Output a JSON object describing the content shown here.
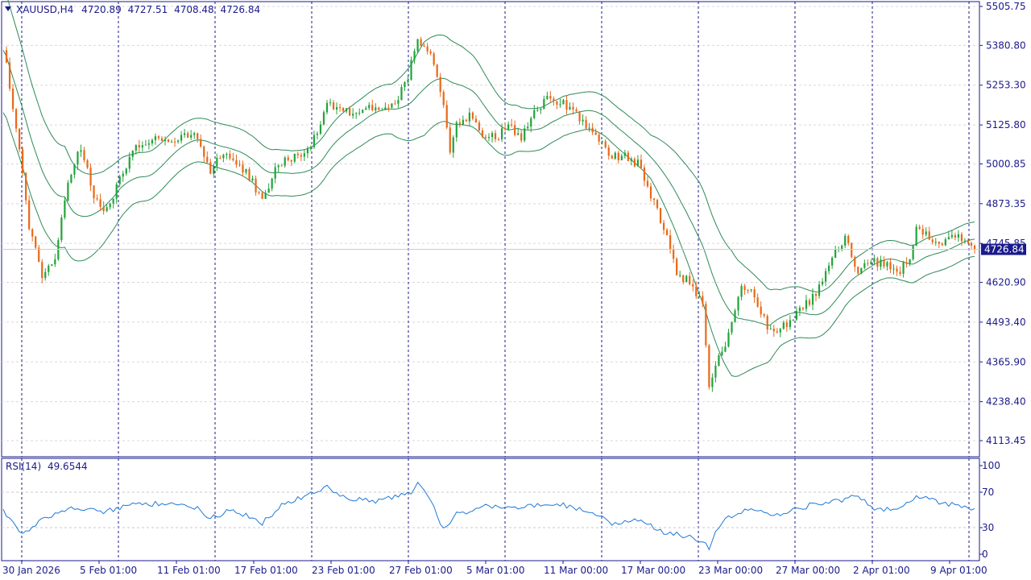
{
  "header": {
    "symbol": "XAUUSD,H4",
    "open": "4720.89",
    "high": "4727.51",
    "low": "4708.48",
    "close": "4726.84"
  },
  "current_price_label": "4726.84",
  "rsi_panel": {
    "label": "RSI(14)",
    "value": "49.6544",
    "levels": [
      "100",
      "70",
      "30",
      "0"
    ]
  },
  "colors": {
    "frame": "#1a1a8c",
    "bull": "#22a33a",
    "bear": "#e8691a",
    "bands": "#2e8b57",
    "rsi": "#1e78d6",
    "grid": "#d8d8d8",
    "price_tag_bg": "#1a1a8c",
    "price_tag_text": "#ffffff"
  },
  "chart_data": {
    "type": "candlestick",
    "symbol": "XAUUSD",
    "timeframe": "H4",
    "price_ticks": [
      "5505.75",
      "5380.80",
      "5253.30",
      "5125.80",
      "5000.85",
      "4873.35",
      "4745.85",
      "4620.90",
      "4493.40",
      "4365.90",
      "4238.40",
      "4113.45"
    ],
    "ylim": [
      4100,
      5505.75
    ],
    "time_ticks": [
      "30 Jan 2026",
      "5 Feb 01:00",
      "11 Feb 01:00",
      "17 Feb 01:00",
      "23 Feb 01:00",
      "27 Feb 01:00",
      "5 Mar 01:00",
      "11 Mar 00:00",
      "17 Mar 00:00",
      "23 Mar 00:00",
      "27 Mar 00:00",
      "2 Apr 01:00",
      "9 Apr 01:00"
    ],
    "last_close": 4726.84,
    "price_path": [
      [
        0,
        5380
      ],
      [
        4,
        5120
      ],
      [
        8,
        4800
      ],
      [
        12,
        4650
      ],
      [
        16,
        4700
      ],
      [
        20,
        4950
      ],
      [
        24,
        5050
      ],
      [
        28,
        4900
      ],
      [
        32,
        4850
      ],
      [
        36,
        4950
      ],
      [
        40,
        5050
      ],
      [
        44,
        5075
      ],
      [
        48,
        5080
      ],
      [
        52,
        5060
      ],
      [
        56,
        5100
      ],
      [
        60,
        5080
      ],
      [
        64,
        4980
      ],
      [
        68,
        5040
      ],
      [
        72,
        5000
      ],
      [
        76,
        4960
      ],
      [
        80,
        4880
      ],
      [
        84,
        4980
      ],
      [
        88,
        5020
      ],
      [
        92,
        5030
      ],
      [
        96,
        5080
      ],
      [
        100,
        5200
      ],
      [
        104,
        5180
      ],
      [
        108,
        5160
      ],
      [
        112,
        5180
      ],
      [
        116,
        5170
      ],
      [
        120,
        5190
      ],
      [
        124,
        5250
      ],
      [
        128,
        5390
      ],
      [
        132,
        5340
      ],
      [
        136,
        5200
      ],
      [
        138,
        5050
      ],
      [
        140,
        5120
      ],
      [
        144,
        5160
      ],
      [
        148,
        5100
      ],
      [
        152,
        5080
      ],
      [
        156,
        5130
      ],
      [
        160,
        5080
      ],
      [
        164,
        5160
      ],
      [
        168,
        5210
      ],
      [
        172,
        5200
      ],
      [
        176,
        5180
      ],
      [
        180,
        5120
      ],
      [
        184,
        5080
      ],
      [
        188,
        5020
      ],
      [
        192,
        5030
      ],
      [
        196,
        5000
      ],
      [
        200,
        4900
      ],
      [
        204,
        4800
      ],
      [
        208,
        4650
      ],
      [
        212,
        4620
      ],
      [
        216,
        4550
      ],
      [
        218,
        4280
      ],
      [
        220,
        4350
      ],
      [
        224,
        4450
      ],
      [
        228,
        4600
      ],
      [
        232,
        4580
      ],
      [
        236,
        4480
      ],
      [
        240,
        4470
      ],
      [
        244,
        4510
      ],
      [
        248,
        4550
      ],
      [
        252,
        4600
      ],
      [
        256,
        4700
      ],
      [
        260,
        4760
      ],
      [
        264,
        4650
      ],
      [
        268,
        4690
      ],
      [
        272,
        4680
      ],
      [
        276,
        4650
      ],
      [
        280,
        4700
      ],
      [
        282,
        4800
      ],
      [
        286,
        4760
      ],
      [
        290,
        4740
      ],
      [
        294,
        4770
      ],
      [
        298,
        4745
      ],
      [
        300,
        4726
      ]
    ],
    "bands_half_width": [
      [
        0,
        200
      ],
      [
        20,
        160
      ],
      [
        40,
        80
      ],
      [
        60,
        70
      ],
      [
        80,
        75
      ],
      [
        100,
        70
      ],
      [
        120,
        80
      ],
      [
        130,
        150
      ],
      [
        140,
        130
      ],
      [
        160,
        70
      ],
      [
        180,
        60
      ],
      [
        200,
        70
      ],
      [
        215,
        180
      ],
      [
        225,
        200
      ],
      [
        240,
        90
      ],
      [
        260,
        60
      ],
      [
        280,
        60
      ],
      [
        300,
        55
      ]
    ],
    "rsi_path": [
      [
        0,
        48
      ],
      [
        6,
        22
      ],
      [
        12,
        40
      ],
      [
        20,
        52
      ],
      [
        30,
        48
      ],
      [
        40,
        55
      ],
      [
        50,
        58
      ],
      [
        60,
        52
      ],
      [
        64,
        40
      ],
      [
        70,
        50
      ],
      [
        76,
        42
      ],
      [
        80,
        35
      ],
      [
        86,
        55
      ],
      [
        96,
        70
      ],
      [
        100,
        76
      ],
      [
        106,
        62
      ],
      [
        116,
        60
      ],
      [
        126,
        70
      ],
      [
        128,
        80
      ],
      [
        132,
        60
      ],
      [
        136,
        28
      ],
      [
        140,
        45
      ],
      [
        150,
        55
      ],
      [
        160,
        52
      ],
      [
        170,
        58
      ],
      [
        180,
        50
      ],
      [
        188,
        35
      ],
      [
        196,
        40
      ],
      [
        204,
        24
      ],
      [
        212,
        20
      ],
      [
        216,
        14
      ],
      [
        218,
        8
      ],
      [
        222,
        38
      ],
      [
        230,
        50
      ],
      [
        240,
        45
      ],
      [
        250,
        56
      ],
      [
        260,
        62
      ],
      [
        264,
        68
      ],
      [
        268,
        52
      ],
      [
        276,
        50
      ],
      [
        282,
        66
      ],
      [
        290,
        58
      ],
      [
        300,
        50
      ]
    ],
    "rsi_levels": [
      70,
      30
    ]
  }
}
